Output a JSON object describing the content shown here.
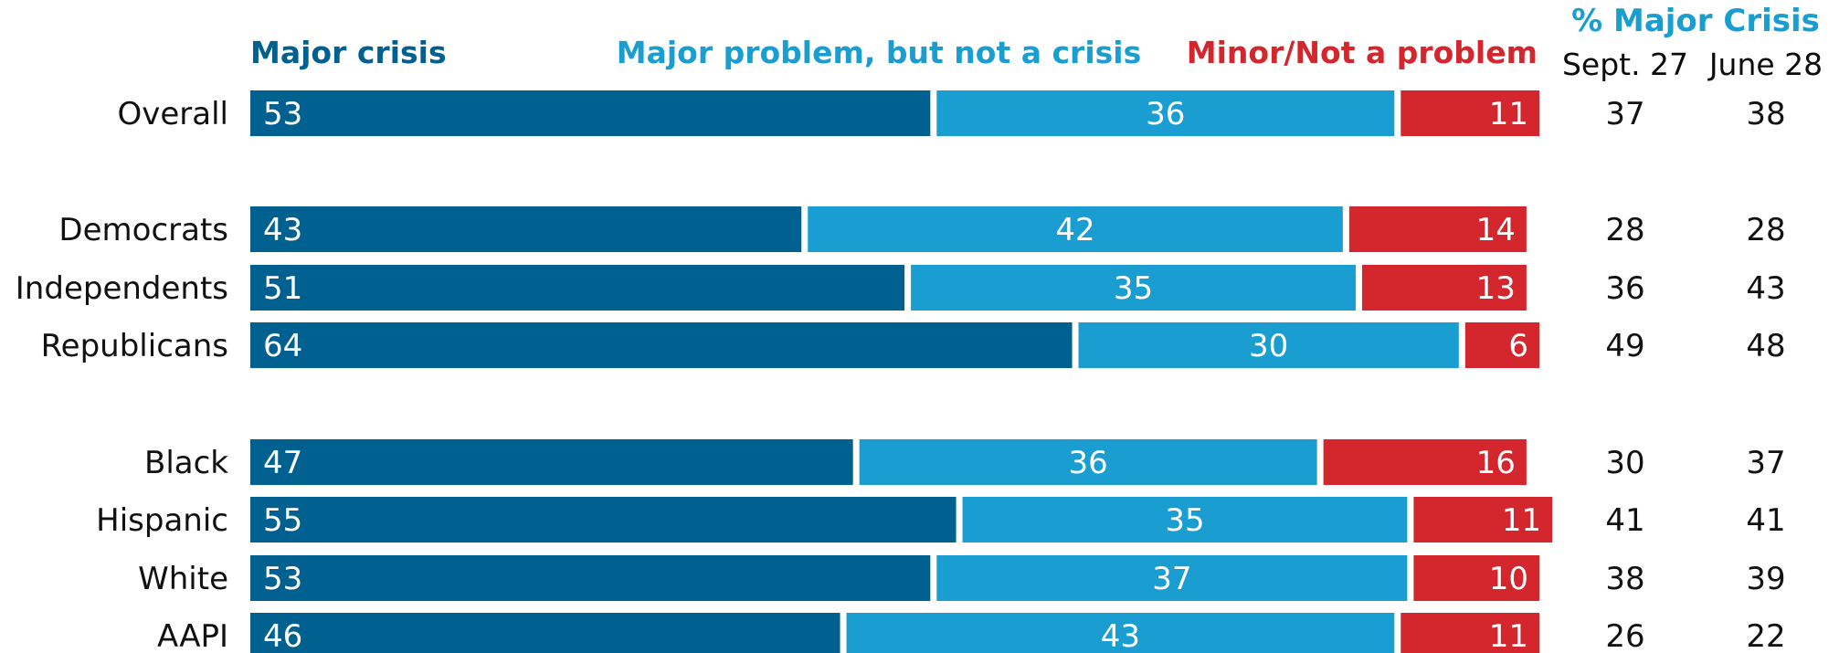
{
  "colors": {
    "major_crisis": "#00608f",
    "major_problem": "#1a9ed2",
    "minor": "#d4262d",
    "header_title": "#1a9ed2"
  },
  "legend": {
    "major_crisis": "Major crisis",
    "major_problem": "Major problem, but not a crisis",
    "minor": "Minor/Not a problem"
  },
  "side_header": {
    "title": "% Major Crisis",
    "col1": "Sept. 27",
    "col2": "June 28"
  },
  "chart_data": {
    "type": "bar",
    "orientation": "horizontal",
    "stacked": true,
    "categories": [
      "Overall",
      "Democrats",
      "Independents",
      "Republicans",
      "Black",
      "Hispanic",
      "White",
      "AAPI"
    ],
    "series": [
      {
        "name": "Major crisis",
        "values": [
          53,
          43,
          51,
          64,
          47,
          55,
          53,
          46
        ]
      },
      {
        "name": "Major problem, but not a crisis",
        "values": [
          36,
          42,
          35,
          30,
          36,
          35,
          37,
          43
        ]
      },
      {
        "name": "Minor/Not a problem",
        "values": [
          11,
          14,
          13,
          6,
          16,
          11,
          10,
          11
        ]
      }
    ],
    "major_crisis_sept27": [
      37,
      28,
      36,
      49,
      30,
      41,
      38,
      26
    ],
    "major_crisis_june28": [
      38,
      28,
      43,
      48,
      37,
      41,
      39,
      22
    ],
    "xlim": [
      0,
      100
    ],
    "legend": "top"
  }
}
